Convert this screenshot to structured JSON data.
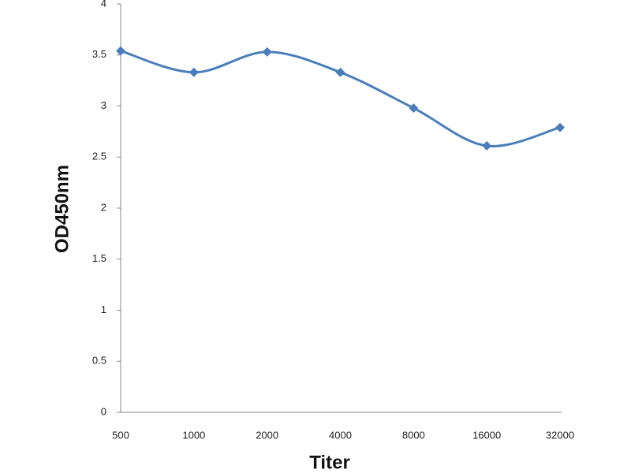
{
  "chart_data": {
    "type": "line",
    "x_label": "Titer",
    "y_label": "OD450nm",
    "categories": [
      "500",
      "1000",
      "2000",
      "4000",
      "8000",
      "16000",
      "32000"
    ],
    "values": [
      3.54,
      3.33,
      3.53,
      3.33,
      2.98,
      2.61,
      2.79
    ],
    "color": "#4a7ebb",
    "smooth": true,
    "marker": "diamond",
    "ylim": [
      0,
      4
    ],
    "yticks": [
      0,
      0.5,
      1,
      1.5,
      2,
      2.5,
      3,
      3.5,
      4
    ],
    "grid": false
  }
}
